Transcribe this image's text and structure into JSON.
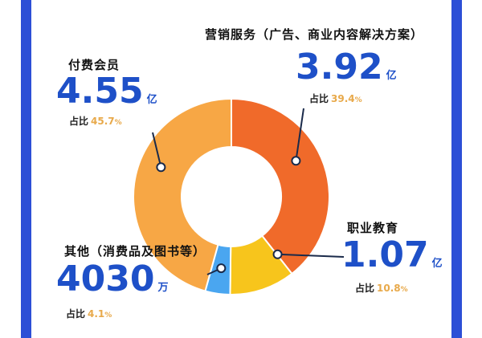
{
  "colors": {
    "accent": "#2c4fd6",
    "value_text": "#1e50c8",
    "share_text": "#e8a94a",
    "leader": "#1a2a4a"
  },
  "chart_data": {
    "type": "pie",
    "donut": true,
    "segments": [
      {
        "key": "marketing",
        "name": "营销服务（广告、商业内容解决方案）",
        "value": 3.92,
        "unit": "亿",
        "share": 39.4,
        "color": "#f06a2a"
      },
      {
        "key": "education",
        "name": "职业教育",
        "value": 1.07,
        "unit": "亿",
        "share": 10.8,
        "color": "#f7c51c"
      },
      {
        "key": "other",
        "name": "其他（消费品及图书等）",
        "value": 4030,
        "unit": "万",
        "share": 4.1,
        "color": "#4aa6f0"
      },
      {
        "key": "membership",
        "name": "付费会员",
        "value": 4.55,
        "unit": "亿",
        "share": 45.7,
        "color": "#f7a745"
      }
    ]
  },
  "labels": {
    "share_prefix": "占比",
    "pct_sign": "%",
    "membership": {
      "name": "付费会员",
      "value": "4.55",
      "unit": "亿",
      "share": "45.7"
    },
    "marketing": {
      "name": "营销服务（广告、商业内容解决方案）",
      "value": "3.92",
      "unit": "亿",
      "share": "39.4"
    },
    "education": {
      "name": "职业教育",
      "value": "1.07",
      "unit": "亿",
      "share": "10.8"
    },
    "other": {
      "name": "其他（消费品及图书等）",
      "value": "4030",
      "unit": "万",
      "share": "4.1"
    }
  }
}
